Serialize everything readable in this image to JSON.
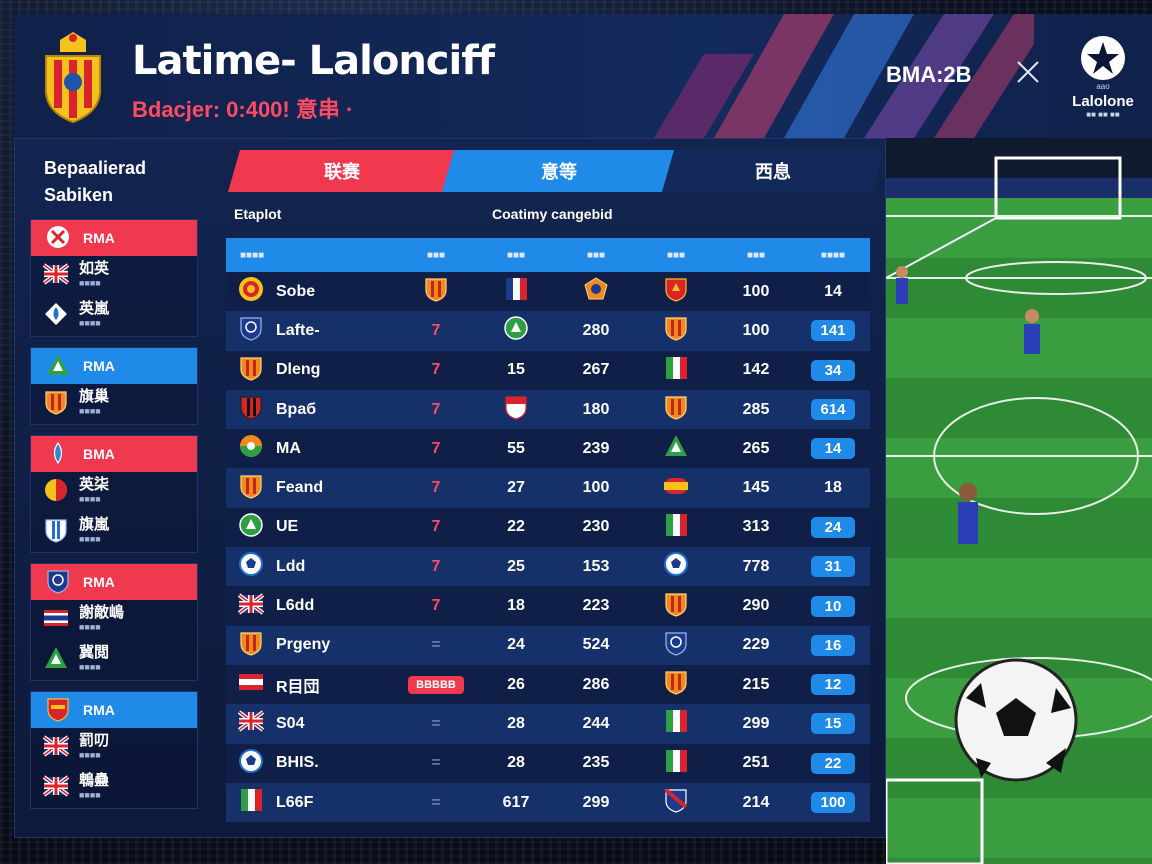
{
  "header": {
    "title": "Latime- Lalonсiff",
    "subtitle": "Bdacjer: 0:400! 意串 ·",
    "code": "BMA:2B",
    "league_name": "Lalolone",
    "league_top": "aao",
    "league_sub": "■■ ■■ ■■"
  },
  "sidebar": {
    "title_line1": "Bepaalierad",
    "title_line2": "Sabiken",
    "groups": [
      {
        "head": "RMA",
        "color": "red",
        "head_icon": "x-badge-icon",
        "items": [
          {
            "main": "如英",
            "sub": "■■■■",
            "icon": "union-flag-icon"
          },
          {
            "main": "英嵐",
            "sub": "■■■■",
            "icon": "blue-drop-crest-icon"
          }
        ]
      },
      {
        "head": "RMA",
        "color": "blue",
        "head_icon": "green-triangle-icon",
        "items": [
          {
            "main": "旗巢",
            "sub": "■■■■",
            "icon": "orange-shield-icon"
          }
        ]
      },
      {
        "head": "BMA",
        "color": "red",
        "head_icon": "drop-icon",
        "items": [
          {
            "main": "英柒",
            "sub": "■■■■",
            "icon": "yellow-red-circle-icon"
          },
          {
            "main": "旗嵐",
            "sub": "■■■■",
            "icon": "blue-white-shield-icon"
          }
        ]
      },
      {
        "head": "RMA",
        "color": "red",
        "head_icon": "blue-shield-icon",
        "items": [
          {
            "main": "謝敵嶋",
            "sub": "■■■■",
            "icon": "thai-flag-icon"
          },
          {
            "main": "冀閲",
            "sub": "■■■■",
            "icon": "green-triangle-icon"
          }
        ]
      },
      {
        "head": "RMA",
        "color": "blue",
        "head_icon": "red-orange-crest-icon",
        "items": [
          {
            "main": "罰叨",
            "sub": "■■■■",
            "icon": "union-flag-icon"
          },
          {
            "main": "鵯蠱",
            "sub": "■■■■",
            "icon": "union-flag-icon"
          }
        ]
      }
    ]
  },
  "tabs": [
    {
      "label": "联赛",
      "active": true
    },
    {
      "label": "意等",
      "active": false
    },
    {
      "label": "西息",
      "active": false
    }
  ],
  "section": {
    "left": "Etaplot",
    "right": "Coatimy cangebid"
  },
  "table": {
    "headers": [
      "■■■■",
      "■■■",
      "■■■",
      "■■■",
      "■■■",
      "■■■",
      "■■■■"
    ],
    "rows": [
      {
        "team": "Sobe",
        "team_icon": "spain-crest-icon",
        "c1_icon": "orange-shield-icon",
        "c2_icon": "france-flag-icon",
        "c3": "",
        "c3_icon": "gold-crest-icon",
        "c4_icon": "red-shield-icon",
        "c5": "100",
        "c6": "14",
        "c6_pill": false
      },
      {
        "team": "Lafte-",
        "team_icon": "blue-shield-icon",
        "c1": "7",
        "c2_icon": "green-circle-icon",
        "c3": "280",
        "c4_icon": "orange-shield-icon",
        "c5": "100",
        "c6": "141",
        "c6_pill": true
      },
      {
        "team": "Dleng",
        "team_icon": "orange-shield-icon",
        "c1": "7",
        "c2": "15",
        "c3": "267",
        "c4_icon": "italy-flag-icon",
        "c5": "142",
        "c6": "34",
        "c6_pill": true
      },
      {
        "team": "Bpaб",
        "team_icon": "red-black-crest-icon",
        "c1": "7",
        "c2_icon": "red-white-crest-icon",
        "c3": "180",
        "c4_icon": "orange-shield-icon",
        "c5": "285",
        "c6": "614",
        "c6_pill": true
      },
      {
        "team": "MA",
        "team_icon": "orange-green-circle-icon",
        "c1": "7",
        "c2": "55",
        "c3": "239",
        "c4_icon": "green-triangle-icon",
        "c5": "265",
        "c6": "14",
        "c6_pill": true
      },
      {
        "team": "Feand",
        "team_icon": "orange-shield-icon",
        "c1": "7",
        "c2": "27",
        "c3": "100",
        "c4_icon": "spain-flag-icon",
        "c5": "145",
        "c6": "18",
        "c6_pill": false
      },
      {
        "team": "UE",
        "team_icon": "green-circle-icon",
        "c1": "7",
        "c2": "22",
        "c3": "230",
        "c4_icon": "italy-flag-icon",
        "c5": "313",
        "c6": "24",
        "c6_pill": true
      },
      {
        "team": "Ldd",
        "team_icon": "ball-crest-icon",
        "c1": "7",
        "c2": "25",
        "c3": "153",
        "c4_icon": "ball-crest-icon",
        "c5": "778",
        "c6": "31",
        "c6_pill": true
      },
      {
        "team": "L6dd",
        "team_icon": "union-flag-icon",
        "c1": "7",
        "c2": "18",
        "c3": "223",
        "c4_icon": "orange-shield-icon",
        "c5": "290",
        "c6": "10",
        "c6_pill": true
      },
      {
        "team": "Prgeny",
        "team_icon": "orange-shield-icon",
        "c1": "=",
        "c2": "24",
        "c3": "524",
        "c4_icon": "blue-shield-icon",
        "c5": "229",
        "c6": "16",
        "c6_pill": true
      },
      {
        "team": "R目団",
        "team_icon": "red-white-flag-icon",
        "c1": "BBBBB",
        "c1_pill": true,
        "c2": "26",
        "c3": "286",
        "c4_icon": "orange-shield-icon",
        "c5": "215",
        "c6": "12",
        "c6_pill": true
      },
      {
        "team": "S04",
        "team_icon": "union-flag-icon",
        "c1": "=",
        "c2": "28",
        "c3": "244",
        "c4_icon": "italy-flag-icon",
        "c5": "299",
        "c6": "15",
        "c6_pill": true
      },
      {
        "team": "BHIS.",
        "team_icon": "ball-crest-icon",
        "c1": "=",
        "c2": "28",
        "c3": "235",
        "c4_icon": "italy-flag-icon",
        "c5": "251",
        "c6": "22",
        "c6_pill": true
      },
      {
        "team": "L66F",
        "team_icon": "italy-flag-icon",
        "c1": "=",
        "c2": "617",
        "c3": "299",
        "c4_icon": "blue-red-shield-icon",
        "c5": "214",
        "c6": "100",
        "c6_pill": true
      }
    ]
  },
  "colors": {
    "accent_red": "#f0384f",
    "accent_blue": "#1f8ae8",
    "panel": "#12244f"
  }
}
